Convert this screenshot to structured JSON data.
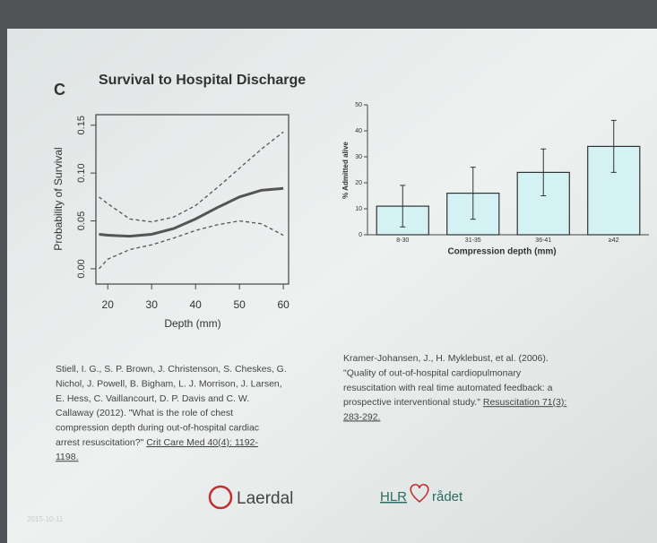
{
  "chart_data": [
    {
      "type": "line",
      "panel_label": "C",
      "title": "Survival to Hospital Discharge",
      "xlabel": "Depth (mm)",
      "ylabel": "Probability of Survival",
      "x": [
        18,
        20,
        25,
        30,
        35,
        40,
        45,
        50,
        55,
        60
      ],
      "series": [
        {
          "color": "#555555",
          "style": "solid",
          "values": [
            0.036,
            0.035,
            0.034,
            0.036,
            0.042,
            0.052,
            0.064,
            0.075,
            0.082,
            0.084
          ]
        },
        {
          "color": "#555555",
          "style": "dashed",
          "values": [
            0.075,
            0.068,
            0.052,
            0.049,
            0.054,
            0.066,
            0.085,
            0.105,
            0.125,
            0.143
          ]
        },
        {
          "color": "#555555",
          "style": "dashed",
          "values": [
            0.0,
            0.01,
            0.02,
            0.025,
            0.032,
            0.04,
            0.046,
            0.05,
            0.047,
            0.035
          ]
        }
      ],
      "xlim": [
        17.3,
        61.2
      ],
      "xticks": [
        20,
        30,
        40,
        50,
        60
      ],
      "ylim": [
        -0.016,
        0.161
      ],
      "yticks": [
        {
          "value": 0,
          "label": "0.00"
        },
        0.05,
        {
          "value": 0.1,
          "label": "0.10"
        },
        0.15
      ]
    },
    {
      "type": "bar",
      "xlabel": "Compression depth (mm)",
      "ylabel": "% Admitted alive",
      "categories": [
        "8-30",
        "31-35",
        "36-41",
        "≥42"
      ],
      "values": [
        11,
        16,
        24,
        34
      ],
      "errors": [
        8,
        10,
        9,
        10
      ],
      "color": "#d4f1f3",
      "ylim": [
        0,
        50
      ],
      "yticks": [
        0,
        10,
        20,
        30,
        40,
        50
      ]
    }
  ],
  "left_reference": {
    "lines": [
      "Stiell, I. G., S. P. Brown, J. Christenson, S. Cheskes, G.",
      "Nichol, J. Powell, B. Bigham, L. J. Morrison, J. Larsen,",
      "E. Hess, C. Vaillancourt, D. P. Davis and C. W.",
      "Callaway (2012). \"What is the role of chest",
      "compression depth during out-of-hospital cardiac",
      "arrest resuscitation?\""
    ],
    "link_lines": [
      "Crit Care Med 40(4): 1192-",
      "1198."
    ]
  },
  "right_reference": {
    "lines": [
      "Kramer-Johansen, J., H. Myklebust, et al. (2006).",
      "\"Quality of out-of-hospital cardiopulmonary",
      "resuscitation with real time automated feedback: a",
      "prospective interventional study.\""
    ],
    "link_lines": [
      "Resuscitation 71(3):",
      "283-292."
    ]
  },
  "footer": {
    "date": "2015-10-11",
    "logo_left": "Laerdal",
    "logo_right_1": "HLR",
    "logo_right_2": "rådet"
  }
}
